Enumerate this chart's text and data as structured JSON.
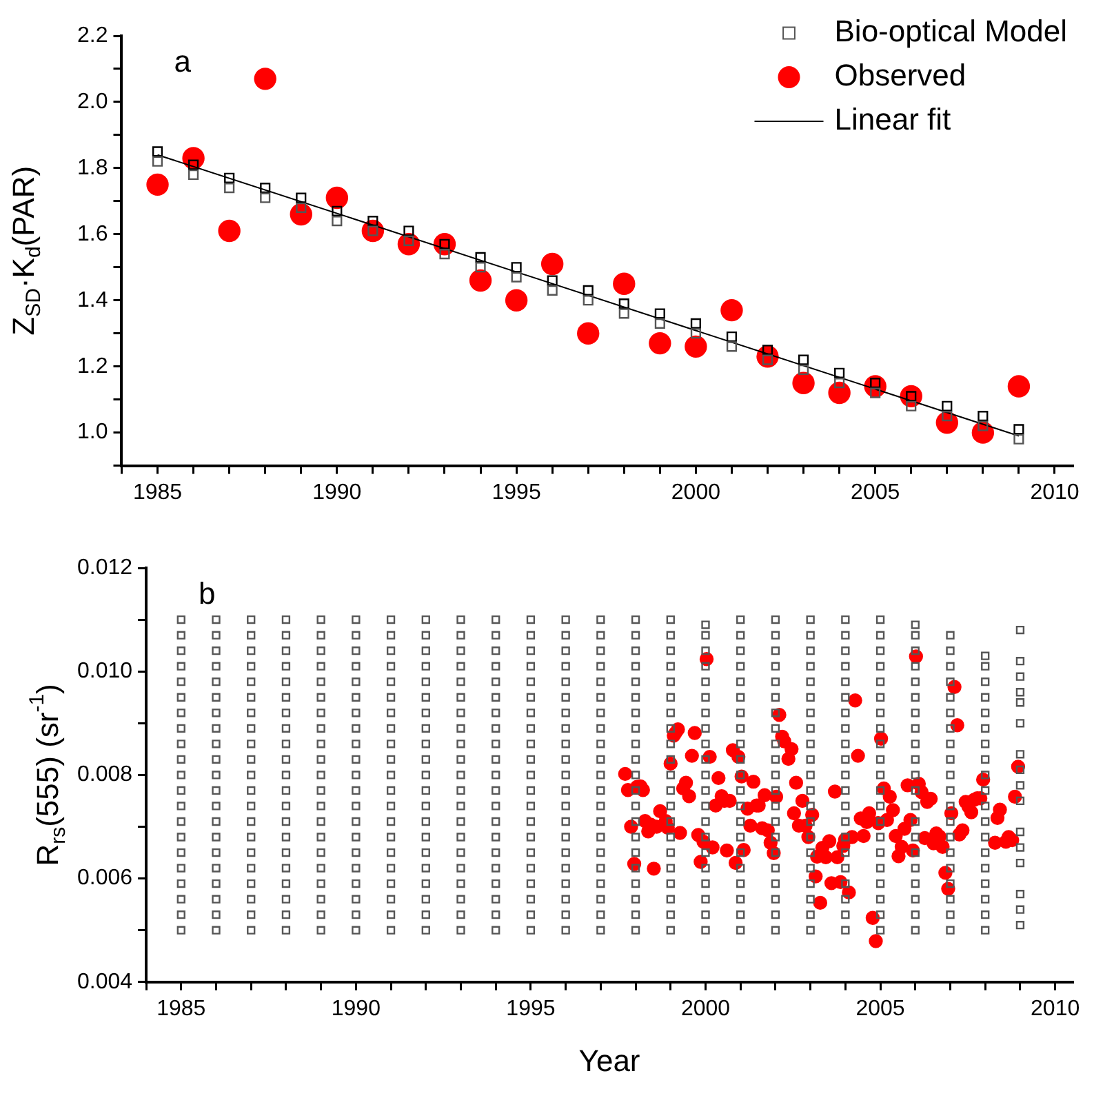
{
  "chart_data": [
    {
      "type": "scatter",
      "ylabel": "Z$_{SD}$·K$_{d}$(PAR)",
      "annotations": [
        "a"
      ],
      "xlim": [
        1984,
        2010.5
      ],
      "xticks": [
        {
          "value": 1984,
          "label": null
        },
        1985,
        {
          "value": 1986,
          "label": null
        },
        {
          "value": 1987,
          "label": null
        },
        {
          "value": 1988,
          "label": null
        },
        {
          "value": 1989,
          "label": null
        },
        1990,
        {
          "value": 1991,
          "label": null
        },
        {
          "value": 1992,
          "label": null
        },
        {
          "value": 1993,
          "label": null
        },
        {
          "value": 1994,
          "label": null
        },
        1995,
        {
          "value": 1996,
          "label": null
        },
        {
          "value": 1997,
          "label": null
        },
        {
          "value": 1998,
          "label": null
        },
        {
          "value": 1999,
          "label": null
        },
        2000,
        {
          "value": 2001,
          "label": null
        },
        {
          "value": 2002,
          "label": null
        },
        {
          "value": 2003,
          "label": null
        },
        {
          "value": 2004,
          "label": null
        },
        2005,
        {
          "value": 2006,
          "label": null
        },
        {
          "value": 2007,
          "label": null
        },
        {
          "value": 2008,
          "label": null
        },
        {
          "value": 2009,
          "label": null
        },
        2010
      ],
      "ylim": [
        0.9,
        2.2
      ],
      "yticks": [
        {
          "value": 0.9,
          "label": null
        },
        {
          "value": 1,
          "label": "1.0"
        },
        {
          "value": 1.1,
          "label": null
        },
        1.2,
        {
          "value": 1.3,
          "label": null
        },
        1.4,
        {
          "value": 1.5,
          "label": null
        },
        1.6,
        {
          "value": 1.7,
          "label": null
        },
        1.8,
        {
          "value": 1.9,
          "label": null
        },
        {
          "value": 2,
          "label": "2.0"
        },
        {
          "value": 2.1,
          "label": null
        },
        2.2
      ],
      "legend": "top right",
      "x": [
        1985,
        1986,
        1987,
        1988,
        1989,
        1990,
        1991,
        1992,
        1993,
        1994,
        1995,
        1996,
        1997,
        1998,
        1999,
        2000,
        2001,
        2002,
        2003,
        2004,
        2005,
        2006,
        2007,
        2008,
        2009
      ],
      "series": [
        {
          "color": "#000000",
          "marker": "square",
          "values": [
            1.85,
            1.81,
            1.77,
            1.74,
            1.71,
            1.67,
            1.64,
            1.61,
            1.57,
            1.53,
            1.5,
            1.46,
            1.43,
            1.39,
            1.36,
            1.33,
            1.29,
            1.25,
            1.22,
            1.18,
            1.15,
            1.11,
            1.08,
            1.05,
            1.01
          ]
        },
        {
          "name": "Bio-optical Model",
          "color": "#555555",
          "marker": "square",
          "values": [
            1.82,
            1.78,
            1.74,
            1.71,
            1.68,
            1.64,
            1.61,
            1.58,
            1.54,
            1.5,
            1.47,
            1.43,
            1.4,
            1.36,
            1.33,
            1.3,
            1.26,
            1.22,
            1.19,
            1.15,
            1.12,
            1.08,
            1.05,
            1.02,
            0.98
          ]
        },
        {
          "name": "Observed",
          "color": "#ff0000",
          "marker": "circle",
          "values": [
            1.75,
            1.83,
            1.61,
            2.07,
            1.66,
            1.71,
            1.61,
            1.57,
            1.57,
            1.46,
            1.4,
            1.51,
            1.3,
            1.45,
            1.27,
            1.26,
            1.37,
            1.23,
            1.15,
            1.12,
            1.14,
            1.11,
            1.03,
            1.0,
            1.14
          ]
        },
        {
          "name": "Linear fit",
          "type": "line",
          "color": "#000000",
          "x": [
            1985,
            2009
          ],
          "values": [
            1.84,
            0.99
          ]
        }
      ]
    },
    {
      "type": "scatter",
      "ylabel": "R$_{rs}$(555) (sr$^{-1}$)",
      "xlabel": "Year",
      "annotations": [
        "b"
      ],
      "xlim": [
        1984,
        2010.5
      ],
      "xticks": [
        {
          "value": 1984,
          "label": null
        },
        1985,
        {
          "value": 1986,
          "label": null
        },
        {
          "value": 1987,
          "label": null
        },
        {
          "value": 1988,
          "label": null
        },
        {
          "value": 1989,
          "label": null
        },
        1990,
        {
          "value": 1991,
          "label": null
        },
        {
          "value": 1992,
          "label": null
        },
        {
          "value": 1993,
          "label": null
        },
        {
          "value": 1994,
          "label": null
        },
        1995,
        {
          "value": 1996,
          "label": null
        },
        {
          "value": 1997,
          "label": null
        },
        {
          "value": 1998,
          "label": null
        },
        {
          "value": 1999,
          "label": null
        },
        2000,
        {
          "value": 2001,
          "label": null
        },
        {
          "value": 2002,
          "label": null
        },
        {
          "value": 2003,
          "label": null
        },
        {
          "value": 2004,
          "label": null
        },
        2005,
        {
          "value": 2006,
          "label": null
        },
        {
          "value": 2007,
          "label": null
        },
        {
          "value": 2008,
          "label": null
        },
        {
          "value": 2009,
          "label": null
        },
        2010
      ],
      "ylim": [
        0.004,
        0.012
      ],
      "yticks": [
        0.004,
        {
          "value": 0.005,
          "label": null
        },
        0.006,
        {
          "value": 0.007,
          "label": null
        },
        0.008,
        {
          "value": 0.009,
          "label": null
        },
        {
          "value": 0.01,
          "label": "0.010"
        },
        {
          "value": 0.011,
          "label": null
        },
        0.012
      ],
      "series": [
        {
          "color": "#555555",
          "marker": "square",
          "x": [
            1985,
            1985,
            1985,
            1985,
            1985,
            1985,
            1985,
            1985,
            1985,
            1985,
            1985,
            1985,
            1985,
            1985,
            1985,
            1985,
            1985,
            1985,
            1985,
            1985,
            1985,
            1986,
            1986,
            1986,
            1986,
            1986,
            1986,
            1986,
            1986,
            1986,
            1986,
            1986,
            1986,
            1986,
            1986,
            1986,
            1986,
            1986,
            1986,
            1986,
            1986,
            1986,
            1987,
            1987,
            1987,
            1987,
            1987,
            1987,
            1987,
            1987,
            1987,
            1987,
            1987,
            1987,
            1987,
            1987,
            1987,
            1987,
            1987,
            1987,
            1987,
            1987,
            1987,
            1988,
            1988,
            1988,
            1988,
            1988,
            1988,
            1988,
            1988,
            1988,
            1988,
            1988,
            1988,
            1988,
            1988,
            1988,
            1988,
            1988,
            1988,
            1988,
            1988,
            1988,
            1989,
            1989,
            1989,
            1989,
            1989,
            1989,
            1989,
            1989,
            1989,
            1989,
            1989,
            1989,
            1989,
            1989,
            1989,
            1989,
            1989,
            1989,
            1989,
            1989,
            1989,
            1990,
            1990,
            1990,
            1990,
            1990,
            1990,
            1990,
            1990,
            1990,
            1990,
            1990,
            1990,
            1990,
            1990,
            1990,
            1990,
            1990,
            1990,
            1990,
            1990,
            1990,
            1991,
            1991,
            1991,
            1991,
            1991,
            1991,
            1991,
            1991,
            1991,
            1991,
            1991,
            1991,
            1991,
            1991,
            1991,
            1991,
            1991,
            1991,
            1991,
            1991,
            1991,
            1992,
            1992,
            1992,
            1992,
            1992,
            1992,
            1992,
            1992,
            1992,
            1992,
            1992,
            1992,
            1992,
            1992,
            1992,
            1992,
            1992,
            1992,
            1992,
            1992,
            1992,
            1993,
            1993,
            1993,
            1993,
            1993,
            1993,
            1993,
            1993,
            1993,
            1993,
            1993,
            1993,
            1993,
            1993,
            1993,
            1993,
            1993,
            1993,
            1993,
            1993,
            1993,
            1994,
            1994,
            1994,
            1994,
            1994,
            1994,
            1994,
            1994,
            1994,
            1994,
            1994,
            1994,
            1994,
            1994,
            1994,
            1994,
            1994,
            1994,
            1994,
            1994,
            1994,
            1995,
            1995,
            1995,
            1995,
            1995,
            1995,
            1995,
            1995,
            1995,
            1995,
            1995,
            1995,
            1995,
            1995,
            1995,
            1995,
            1995,
            1995,
            1995,
            1995,
            1995,
            1996,
            1996,
            1996,
            1996,
            1996,
            1996,
            1996,
            1996,
            1996,
            1996,
            1996,
            1996,
            1996,
            1996,
            1996,
            1996,
            1996,
            1996,
            1996,
            1996,
            1996,
            1997,
            1997,
            1997,
            1997,
            1997,
            1997,
            1997,
            1997,
            1997,
            1997,
            1997,
            1997,
            1997,
            1997,
            1997,
            1997,
            1997,
            1997,
            1997,
            1997,
            1997,
            1998,
            1998,
            1998,
            1998,
            1998,
            1998,
            1998,
            1998,
            1998,
            1998,
            1998,
            1998,
            1998,
            1998,
            1998,
            1998,
            1998,
            1998,
            1998,
            1998,
            1998,
            1999,
            1999,
            1999,
            1999,
            1999,
            1999,
            1999,
            1999,
            1999,
            1999,
            1999,
            1999,
            1999,
            1999,
            1999,
            1999,
            1999,
            1999,
            1999,
            1999,
            1999,
            2000,
            2000,
            2000,
            2000,
            2000,
            2000,
            2000,
            2000,
            2000,
            2000,
            2000,
            2000,
            2000,
            2000,
            2000,
            2000,
            2000,
            2000,
            2000,
            2000,
            2000,
            2001,
            2001,
            2001,
            2001,
            2001,
            2001,
            2001,
            2001,
            2001,
            2001,
            2001,
            2001,
            2001,
            2001,
            2001,
            2001,
            2001,
            2001,
            2001,
            2001,
            2001,
            2002,
            2002,
            2002,
            2002,
            2002,
            2002,
            2002,
            2002,
            2002,
            2002,
            2002,
            2002,
            2002,
            2002,
            2002,
            2002,
            2002,
            2002,
            2002,
            2002,
            2002,
            2003,
            2003,
            2003,
            2003,
            2003,
            2003,
            2003,
            2003,
            2003,
            2003,
            2003,
            2003,
            2003,
            2003,
            2003,
            2003,
            2003,
            2003,
            2003,
            2003,
            2003,
            2004,
            2004,
            2004,
            2004,
            2004,
            2004,
            2004,
            2004,
            2004,
            2004,
            2004,
            2004,
            2004,
            2004,
            2004,
            2004,
            2004,
            2004,
            2004,
            2004,
            2004,
            2005,
            2005,
            2005,
            2005,
            2005,
            2005,
            2005,
            2005,
            2005,
            2005,
            2005,
            2005,
            2005,
            2005,
            2005,
            2005,
            2005,
            2005,
            2005,
            2005,
            2005,
            2006,
            2006,
            2006,
            2006,
            2006,
            2006,
            2006,
            2006,
            2006,
            2006,
            2006,
            2006,
            2006,
            2006,
            2006,
            2006,
            2006,
            2006,
            2006,
            2006,
            2006,
            2007,
            2007,
            2007,
            2007,
            2007,
            2007,
            2007,
            2007,
            2007,
            2007,
            2007,
            2007,
            2007,
            2007,
            2007,
            2007,
            2007,
            2007,
            2007,
            2007,
            2008,
            2008,
            2008,
            2008,
            2008,
            2008,
            2008,
            2008,
            2008,
            2008,
            2008,
            2008,
            2008,
            2008,
            2008,
            2008,
            2008,
            2008,
            2008,
            2009,
            2009,
            2009,
            2009,
            2009,
            2009,
            2009,
            2009,
            2009,
            2009,
            2009,
            2009,
            2009,
            2009,
            2009,
            2009
          ],
          "values": [
            0.005,
            0.0053,
            0.0056,
            0.0059,
            0.0062,
            0.0065,
            0.0068,
            0.0071,
            0.0074,
            0.0077,
            0.008,
            0.0083,
            0.0086,
            0.0089,
            0.0092,
            0.0095,
            0.0098,
            0.0101,
            0.0104,
            0.0107,
            0.011,
            0.005,
            0.0053,
            0.0056,
            0.0059,
            0.0062,
            0.0065,
            0.0068,
            0.0071,
            0.0074,
            0.0077,
            0.008,
            0.0083,
            0.0086,
            0.0089,
            0.0092,
            0.0095,
            0.0098,
            0.0101,
            0.0104,
            0.0107,
            0.011,
            0.005,
            0.0053,
            0.0056,
            0.0059,
            0.0062,
            0.0065,
            0.0068,
            0.0071,
            0.0074,
            0.0077,
            0.008,
            0.0083,
            0.0086,
            0.0089,
            0.0092,
            0.0095,
            0.0098,
            0.0101,
            0.0104,
            0.0107,
            0.011,
            0.005,
            0.0053,
            0.0056,
            0.0059,
            0.0062,
            0.0065,
            0.0068,
            0.0071,
            0.0074,
            0.0077,
            0.008,
            0.0083,
            0.0086,
            0.0089,
            0.0092,
            0.0095,
            0.0098,
            0.0101,
            0.0104,
            0.0107,
            0.011,
            0.005,
            0.0053,
            0.0056,
            0.0059,
            0.0062,
            0.0065,
            0.0068,
            0.0071,
            0.0074,
            0.0077,
            0.008,
            0.0083,
            0.0086,
            0.0089,
            0.0092,
            0.0095,
            0.0098,
            0.0101,
            0.0104,
            0.0107,
            0.011,
            0.005,
            0.0053,
            0.0056,
            0.0059,
            0.0062,
            0.0065,
            0.0068,
            0.0071,
            0.0074,
            0.0077,
            0.008,
            0.0083,
            0.0086,
            0.0089,
            0.0092,
            0.0095,
            0.0098,
            0.0101,
            0.0104,
            0.0107,
            0.011,
            0.005,
            0.0053,
            0.0056,
            0.0059,
            0.0062,
            0.0065,
            0.0068,
            0.0071,
            0.0074,
            0.0077,
            0.008,
            0.0083,
            0.0086,
            0.0089,
            0.0092,
            0.0095,
            0.0098,
            0.0101,
            0.0104,
            0.0107,
            0.011,
            0.005,
            0.0053,
            0.0056,
            0.0059,
            0.0062,
            0.0065,
            0.0068,
            0.0071,
            0.0074,
            0.0077,
            0.008,
            0.0083,
            0.0086,
            0.0089,
            0.0092,
            0.0095,
            0.0098,
            0.0101,
            0.0104,
            0.0107,
            0.011,
            0.005,
            0.0053,
            0.0056,
            0.0059,
            0.0062,
            0.0065,
            0.0068,
            0.0071,
            0.0074,
            0.0077,
            0.008,
            0.0083,
            0.0086,
            0.0089,
            0.0092,
            0.0095,
            0.0098,
            0.0101,
            0.0104,
            0.0107,
            0.011,
            0.005,
            0.0053,
            0.0056,
            0.0059,
            0.0062,
            0.0065,
            0.0068,
            0.0071,
            0.0074,
            0.0077,
            0.008,
            0.0083,
            0.0086,
            0.0089,
            0.0092,
            0.0095,
            0.0098,
            0.0101,
            0.0104,
            0.0107,
            0.011,
            0.005,
            0.0053,
            0.0056,
            0.0059,
            0.0062,
            0.0065,
            0.0068,
            0.0071,
            0.0074,
            0.0077,
            0.008,
            0.0083,
            0.0086,
            0.0089,
            0.0092,
            0.0095,
            0.0098,
            0.0101,
            0.0104,
            0.0107,
            0.011,
            0.005,
            0.0053,
            0.0056,
            0.0059,
            0.0062,
            0.0065,
            0.0068,
            0.0071,
            0.0074,
            0.0077,
            0.008,
            0.0083,
            0.0086,
            0.0089,
            0.0092,
            0.0095,
            0.0098,
            0.0101,
            0.0104,
            0.0107,
            0.011,
            0.005,
            0.0053,
            0.0056,
            0.0059,
            0.0062,
            0.0065,
            0.0068,
            0.0071,
            0.0074,
            0.0077,
            0.008,
            0.0083,
            0.0086,
            0.0089,
            0.0092,
            0.0095,
            0.0098,
            0.0101,
            0.0104,
            0.0107,
            0.011,
            0.005,
            0.0053,
            0.0056,
            0.0059,
            0.0062,
            0.0065,
            0.0068,
            0.0071,
            0.0074,
            0.0077,
            0.008,
            0.0083,
            0.0086,
            0.0089,
            0.0092,
            0.0095,
            0.0098,
            0.0101,
            0.0104,
            0.0107,
            0.011,
            0.005,
            0.0053,
            0.0056,
            0.0059,
            0.0062,
            0.0065,
            0.0068,
            0.0071,
            0.0074,
            0.0077,
            0.008,
            0.0083,
            0.0086,
            0.0089,
            0.0092,
            0.0095,
            0.0098,
            0.0101,
            0.0104,
            0.0107,
            0.011,
            0.005,
            0.0053,
            0.0056,
            0.0059,
            0.0062,
            0.0065,
            0.0068,
            0.0071,
            0.0074,
            0.0077,
            0.008,
            0.0083,
            0.0086,
            0.0089,
            0.0092,
            0.0095,
            0.0098,
            0.0101,
            0.0104,
            0.0107,
            0.0109,
            0.005,
            0.0053,
            0.0056,
            0.0059,
            0.0062,
            0.0065,
            0.0068,
            0.0071,
            0.0074,
            0.0077,
            0.008,
            0.0083,
            0.0086,
            0.0089,
            0.0092,
            0.0095,
            0.0098,
            0.0101,
            0.0104,
            0.0107,
            0.011,
            0.005,
            0.0053,
            0.0056,
            0.0059,
            0.0062,
            0.0065,
            0.0068,
            0.0071,
            0.0074,
            0.0077,
            0.008,
            0.0083,
            0.0086,
            0.0089,
            0.0092,
            0.0095,
            0.0098,
            0.0101,
            0.0104,
            0.0107,
            0.011,
            0.005,
            0.0053,
            0.0056,
            0.0059,
            0.0062,
            0.0065,
            0.0068,
            0.0071,
            0.0074,
            0.0077,
            0.008,
            0.0083,
            0.0086,
            0.0089,
            0.0092,
            0.0095,
            0.0098,
            0.0101,
            0.0104,
            0.0107,
            0.011,
            0.005,
            0.0053,
            0.0056,
            0.0059,
            0.0062,
            0.0065,
            0.0068,
            0.0071,
            0.0074,
            0.0077,
            0.008,
            0.0083,
            0.0086,
            0.0089,
            0.0092,
            0.0095,
            0.0098,
            0.0101,
            0.0104,
            0.0107,
            0.011,
            0.005,
            0.0053,
            0.0056,
            0.0059,
            0.0062,
            0.0065,
            0.0068,
            0.0071,
            0.0074,
            0.0077,
            0.008,
            0.0083,
            0.0086,
            0.0089,
            0.0092,
            0.0095,
            0.0098,
            0.0101,
            0.0104,
            0.0107,
            0.011,
            0.005,
            0.0053,
            0.0056,
            0.0059,
            0.0062,
            0.0065,
            0.0068,
            0.0071,
            0.0074,
            0.0077,
            0.008,
            0.0083,
            0.0086,
            0.0089,
            0.0092,
            0.0095,
            0.0098,
            0.0101,
            0.0104,
            0.0107,
            0.0109,
            0.005,
            0.0053,
            0.0056,
            0.0059,
            0.0062,
            0.0065,
            0.0068,
            0.0071,
            0.0074,
            0.0077,
            0.008,
            0.0083,
            0.0086,
            0.0089,
            0.0092,
            0.0095,
            0.0098,
            0.0101,
            0.0104,
            0.0107,
            0.005,
            0.0053,
            0.0056,
            0.0059,
            0.0062,
            0.0065,
            0.0068,
            0.0071,
            0.0074,
            0.0077,
            0.008,
            0.0083,
            0.0086,
            0.0089,
            0.0092,
            0.0095,
            0.0098,
            0.0101,
            0.0103,
            0.0051,
            0.0054,
            0.0057,
            0.0063,
            0.0066,
            0.0069,
            0.0075,
            0.0078,
            0.0081,
            0.0084,
            0.009,
            0.0094,
            0.0096,
            0.0099,
            0.0102,
            0.0108
          ]
        },
        {
          "color": "#ff0000",
          "marker": "circle",
          "x": [
            1997.7,
            1997.78,
            1997.87,
            1997.96,
            1998.04,
            1998.14,
            1998.21,
            1998.27,
            1998.36,
            1998.43,
            1998.52,
            1998.6,
            1998.7,
            1998.77,
            1998.86,
            1998.92,
            1999.0,
            1999.09,
            1999.14,
            1999.21,
            1999.27,
            1999.36,
            1999.44,
            1999.53,
            1999.61,
            1999.69,
            1999.79,
            1999.86,
            1999.94,
            2000.03,
            2000.12,
            2000.2,
            2000.29,
            2000.37,
            2000.46,
            2000.54,
            2000.61,
            2000.69,
            2000.78,
            2000.86,
            2000.94,
            2001.03,
            2001.09,
            2001.2,
            2001.28,
            2001.37,
            2001.46,
            2001.52,
            2001.62,
            2001.69,
            2001.78,
            2001.86,
            2001.95,
            2002.02,
            2002.11,
            2002.19,
            2002.25,
            2002.37,
            2002.46,
            2002.53,
            2002.59,
            2002.67,
            2002.77,
            2002.86,
            2002.94,
            2003.05,
            2003.15,
            2003.19,
            2003.28,
            2003.34,
            2003.44,
            2003.54,
            2003.6,
            2003.7,
            2003.77,
            2003.86,
            2003.94,
            2003.99,
            2004.1,
            2004.19,
            2004.28,
            2004.36,
            2004.44,
            2004.52,
            2004.61,
            2004.68,
            2004.78,
            2004.87,
            2004.94,
            2005.02,
            2005.1,
            2005.19,
            2005.27,
            2005.36,
            2005.44,
            2005.52,
            2005.61,
            2005.69,
            2005.78,
            2005.86,
            2005.93,
            2006.02,
            2006.1,
            2006.18,
            2006.27,
            2006.34,
            2006.44,
            2006.52,
            2006.6,
            2006.69,
            2006.78,
            2006.86,
            2006.94,
            2007.03,
            2007.12,
            2007.2,
            2007.26,
            2007.35,
            2007.44,
            2007.52,
            2007.6,
            2007.68,
            2007.77,
            2007.86,
            2007.94,
            2008.28,
            2008.35,
            2008.42,
            2008.59,
            2008.67,
            2008.77,
            2008.85,
            2008.94
          ],
          "values": [
            0.00802,
            0.00771,
            0.007,
            0.00628,
            0.00777,
            0.00778,
            0.00771,
            0.00711,
            0.00691,
            0.00704,
            0.00619,
            0.007,
            0.0073,
            null,
            0.00711,
            0.00698,
            0.00822,
            0.00876,
            0.00881,
            0.00888,
            0.00688,
            0.00774,
            0.00785,
            0.00759,
            0.00837,
            0.00881,
            0.00684,
            0.00632,
            0.00671,
            0.01024,
            0.00835,
            0.0066,
            0.00741,
            0.00794,
            0.00759,
            0.0075,
            0.00654,
            0.0075,
            0.00848,
            0.0063,
            0.00835,
            0.00797,
            0.00655,
            0.00735,
            0.00702,
            0.00787,
            0.00741,
            0.00741,
            0.00697,
            0.00761,
            0.00693,
            0.00669,
            0.00649,
            0.00758,
            0.00916,
            0.00874,
            0.00865,
            0.00831,
            0.0085,
            0.00726,
            0.00785,
            0.00702,
            0.0075,
            0.00702,
            0.0068,
            0.00723,
            0.00604,
            0.00642,
            0.00553,
            0.00659,
            0.00641,
            0.00672,
            0.00591,
            0.00768,
            0.00641,
            0.00593,
            0.00663,
            0.00675,
            0.00573,
            0.0068,
            0.00944,
            0.00837,
            0.00716,
            0.00682,
            0.00709,
            0.00726,
            0.00524,
            0.00479,
            0.00707,
            0.0087,
            0.00774,
            0.00713,
            0.00758,
            0.00732,
            0.00682,
            0.00643,
            0.00661,
            0.00696,
            0.0078,
            0.00713,
            0.00654,
            0.01029,
            0.00783,
            0.00767,
            0.00678,
            0.00748,
            0.00754,
            0.00668,
            0.00687,
            0.00681,
            0.00661,
            0.00611,
            0.0058,
            0.00726,
            0.0097,
            0.00896,
            0.00685,
            0.00693,
            0.00748,
            0.00739,
            0.00728,
            0.00752,
            0.00755,
            0.00755,
            0.00791,
            0.00669,
            0.00717,
            0.00733,
            0.00671,
            0.0068,
            0.00674,
            0.00758,
            0.00816
          ]
        }
      ]
    }
  ]
}
